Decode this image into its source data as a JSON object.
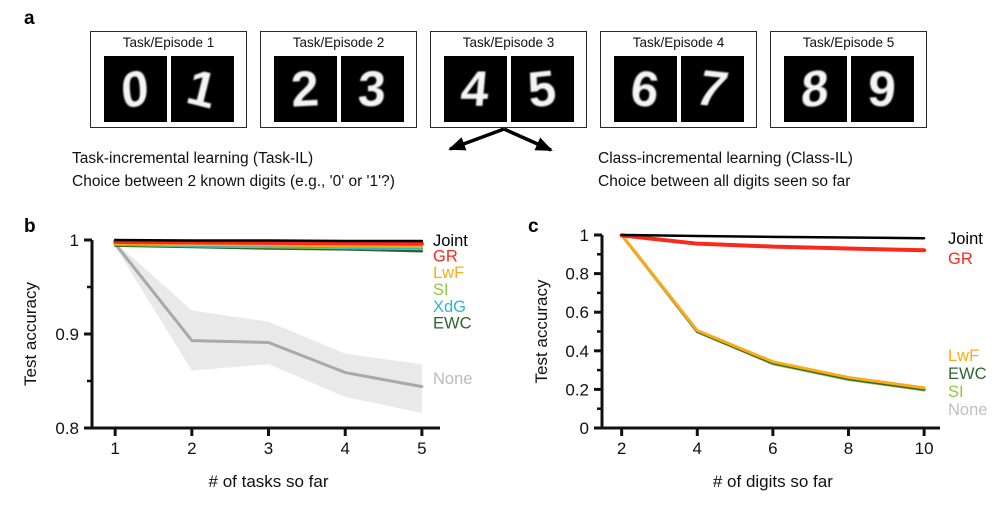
{
  "panel_a": {
    "label": "a",
    "episodes": [
      {
        "title": "Task/Episode 1",
        "digits": [
          "0",
          "1"
        ]
      },
      {
        "title": "Task/Episode 2",
        "digits": [
          "2",
          "3"
        ]
      },
      {
        "title": "Task/Episode 3",
        "digits": [
          "4",
          "5"
        ]
      },
      {
        "title": "Task/Episode 4",
        "digits": [
          "6",
          "7"
        ]
      },
      {
        "title": "Task/Episode 5",
        "digits": [
          "8",
          "9"
        ]
      }
    ],
    "task_il": {
      "line1": "Task-incremental learning (Task-IL)",
      "line2": "Choice between 2 known digits (e.g., '0' or '1'?)"
    },
    "class_il": {
      "line1": "Class-incremental learning (Class-IL)",
      "line2": "Choice between all digits seen so far"
    }
  },
  "panel_b_label": "b",
  "panel_c_label": "c",
  "colors": {
    "joint": "#000000",
    "gr": "#f92a1c",
    "lwf": "#fbab18",
    "si": "#8fc93d",
    "xdg": "#2fb6d5",
    "ewc": "#2d662d",
    "none": "#a9a9a9",
    "band": "#e9e9e9",
    "axis": "#111111"
  },
  "chart_data": [
    {
      "id": "task_il_chart",
      "type": "line",
      "title": "",
      "xlabel": "# of tasks so far",
      "ylabel": "Test accuracy",
      "xlim": [
        0.698,
        5.236
      ],
      "ylim": [
        0.8,
        1.0
      ],
      "x_ticks": [
        1,
        2,
        3,
        4,
        5
      ],
      "y_ticks": [
        0.8,
        0.9,
        1
      ],
      "y_minor_ticks": [
        0.85,
        0.95
      ],
      "grid": false,
      "legend_position": "right-of-plot, stacked at line ends",
      "band": {
        "series": "None",
        "color": "#e9e9e9",
        "x": [
          1,
          2,
          3,
          4,
          5
        ],
        "lo": [
          0.993,
          0.861,
          0.868,
          0.833,
          0.816
        ],
        "hi": [
          0.998,
          0.925,
          0.913,
          0.879,
          0.868
        ]
      },
      "series": [
        {
          "name": "None",
          "color": "#a9a9a9",
          "label_color": "#bcbcbc",
          "width": 3,
          "label_y": 0.853,
          "x": [
            1,
            2,
            3,
            4,
            5
          ],
          "y": [
            0.996,
            0.893,
            0.891,
            0.859,
            0.844
          ]
        },
        {
          "name": "EWC",
          "color": "#2d662d",
          "width": 2.5,
          "label_y": 0.9125,
          "x": [
            1,
            2,
            3,
            4,
            5
          ],
          "y": [
            0.994,
            0.9925,
            0.991,
            0.99,
            0.988
          ]
        },
        {
          "name": "SI",
          "color": "#8fc93d",
          "width": 2.5,
          "label_y": 0.948,
          "x": [
            1,
            2,
            3,
            4,
            5
          ],
          "y": [
            0.995,
            0.9935,
            0.9925,
            0.9915,
            0.9905
          ]
        },
        {
          "name": "XdG",
          "color": "#2fb6d5",
          "width": 2.5,
          "label_y": 0.93,
          "x": [
            1,
            2,
            3,
            4,
            5
          ],
          "y": [
            0.9955,
            0.994,
            0.9935,
            0.992,
            0.9915
          ]
        },
        {
          "name": "LwF",
          "color": "#fbab18",
          "width": 2.5,
          "label_y": 0.966,
          "x": [
            1,
            2,
            3,
            4,
            5
          ],
          "y": [
            0.996,
            0.995,
            0.9945,
            0.9935,
            0.993
          ]
        },
        {
          "name": "GR",
          "color": "#f92a1c",
          "width": 4,
          "label_y": 0.9835,
          "x": [
            1,
            2,
            3,
            4,
            5
          ],
          "y": [
            0.998,
            0.9975,
            0.997,
            0.9965,
            0.996
          ]
        },
        {
          "name": "Joint",
          "color": "#000000",
          "width": 2.5,
          "label_y": 1.0,
          "x": [
            1,
            2,
            3,
            4,
            5
          ],
          "y": [
            1.0,
            0.9995,
            0.9995,
            0.999,
            0.999
          ]
        }
      ]
    },
    {
      "id": "class_il_chart",
      "type": "line",
      "title": "",
      "xlabel": "# of digits so far",
      "ylabel": "Test accuracy",
      "xlim": [
        1.48,
        10.42
      ],
      "ylim": [
        0,
        1
      ],
      "x_ticks": [
        2,
        4,
        6,
        8,
        10
      ],
      "y_ticks": [
        0,
        0.2,
        0.4,
        0.6,
        0.8,
        1
      ],
      "y_minor_ticks": [
        0.1,
        0.3,
        0.5,
        0.7,
        0.9
      ],
      "grid": false,
      "legend_position": "right-of-plot, stacked at line ends",
      "series": [
        {
          "name": "None",
          "color": "#c0c0c0",
          "width": 2.5,
          "label_y": 0.098,
          "x": [
            2,
            4,
            6,
            8,
            10
          ],
          "y": [
            1.0,
            0.496,
            0.331,
            0.249,
            0.195
          ]
        },
        {
          "name": "SI",
          "color": "#8fc93d",
          "width": 2.5,
          "label_y": 0.192,
          "x": [
            2,
            4,
            6,
            8,
            10
          ],
          "y": [
            1.0,
            0.498,
            0.333,
            0.251,
            0.197
          ]
        },
        {
          "name": "EWC",
          "color": "#2d662d",
          "width": 3,
          "label_y": 0.285,
          "x": [
            2,
            4,
            6,
            8,
            10
          ],
          "y": [
            1.0,
            0.501,
            0.337,
            0.255,
            0.201
          ]
        },
        {
          "name": "LwF",
          "color": "#fbab18",
          "width": 3,
          "label_y": 0.378,
          "x": [
            2,
            4,
            6,
            8,
            10
          ],
          "y": [
            1.0,
            0.505,
            0.343,
            0.262,
            0.208
          ]
        },
        {
          "name": "GR",
          "color": "#f92a1c",
          "width": 4,
          "label_y": 0.88,
          "x": [
            2,
            4,
            6,
            8,
            10
          ],
          "y": [
            0.998,
            0.955,
            0.94,
            0.93,
            0.921
          ]
        },
        {
          "name": "Joint",
          "color": "#000000",
          "width": 2.5,
          "label_y": 0.985,
          "x": [
            2,
            4,
            6,
            8,
            10
          ],
          "y": [
            1.0,
            0.995,
            0.99,
            0.987,
            0.983
          ]
        }
      ]
    }
  ]
}
